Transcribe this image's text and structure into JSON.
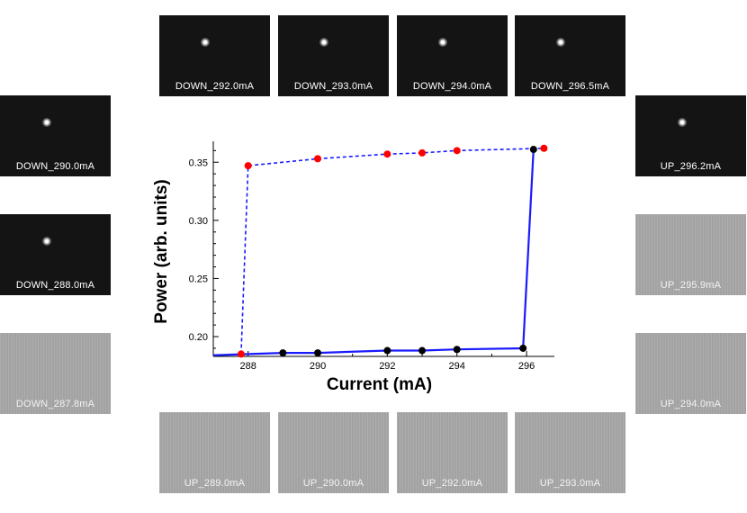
{
  "tiles": [
    {
      "label": "DOWN_292.0mA",
      "style": "dark"
    },
    {
      "label": "DOWN_293.0mA",
      "style": "dark"
    },
    {
      "label": "DOWN_294.0mA",
      "style": "dark"
    },
    {
      "label": "DOWN_296.5mA",
      "style": "dark"
    },
    {
      "label": "DOWN_290.0mA",
      "style": "dark"
    },
    {
      "label": "DOWN_288.0mA",
      "style": "dark"
    },
    {
      "label": "DOWN_287.8mA",
      "style": "gray"
    },
    {
      "label": "UP_296.2mA",
      "style": "dark"
    },
    {
      "label": "UP_295.9mA",
      "style": "gray"
    },
    {
      "label": "UP_294.0mA",
      "style": "gray"
    },
    {
      "label": "UP_289.0mA",
      "style": "gray"
    },
    {
      "label": "UP_290.0mA",
      "style": "gray"
    },
    {
      "label": "UP_292.0mA",
      "style": "gray"
    },
    {
      "label": "UP_293.0mA",
      "style": "gray"
    }
  ],
  "chart_data": {
    "type": "line",
    "xlabel": "Current (mA)",
    "ylabel": "Power (arb. units)",
    "xlim": [
      287,
      296.8
    ],
    "ylim": [
      0.183,
      0.368
    ],
    "xticks": [
      288,
      290,
      292,
      294,
      296
    ],
    "yticks": [
      0.2,
      0.25,
      0.3,
      0.35
    ],
    "ytick_labels": [
      "0.20",
      "0.25",
      "0.30",
      "0.35"
    ],
    "series": [
      {
        "style": "dashed",
        "color": "#1a1aff",
        "marker_color": "#ff0000",
        "points": [
          [
            287.8,
            0.185
          ],
          [
            288.0,
            0.347
          ],
          [
            290.0,
            0.353
          ],
          [
            292.0,
            0.357
          ],
          [
            293.0,
            0.358
          ],
          [
            294.0,
            0.36
          ],
          [
            296.5,
            0.362
          ]
        ]
      },
      {
        "style": "solid",
        "color": "#1a1aff",
        "marker_color": "#000000",
        "points": [
          [
            287.0,
            0.184
          ],
          [
            289.0,
            0.186
          ],
          [
            290.0,
            0.186
          ],
          [
            292.0,
            0.188
          ],
          [
            293.0,
            0.188
          ],
          [
            294.0,
            0.189
          ],
          [
            295.9,
            0.19
          ],
          [
            296.2,
            0.361
          ]
        ]
      }
    ]
  }
}
